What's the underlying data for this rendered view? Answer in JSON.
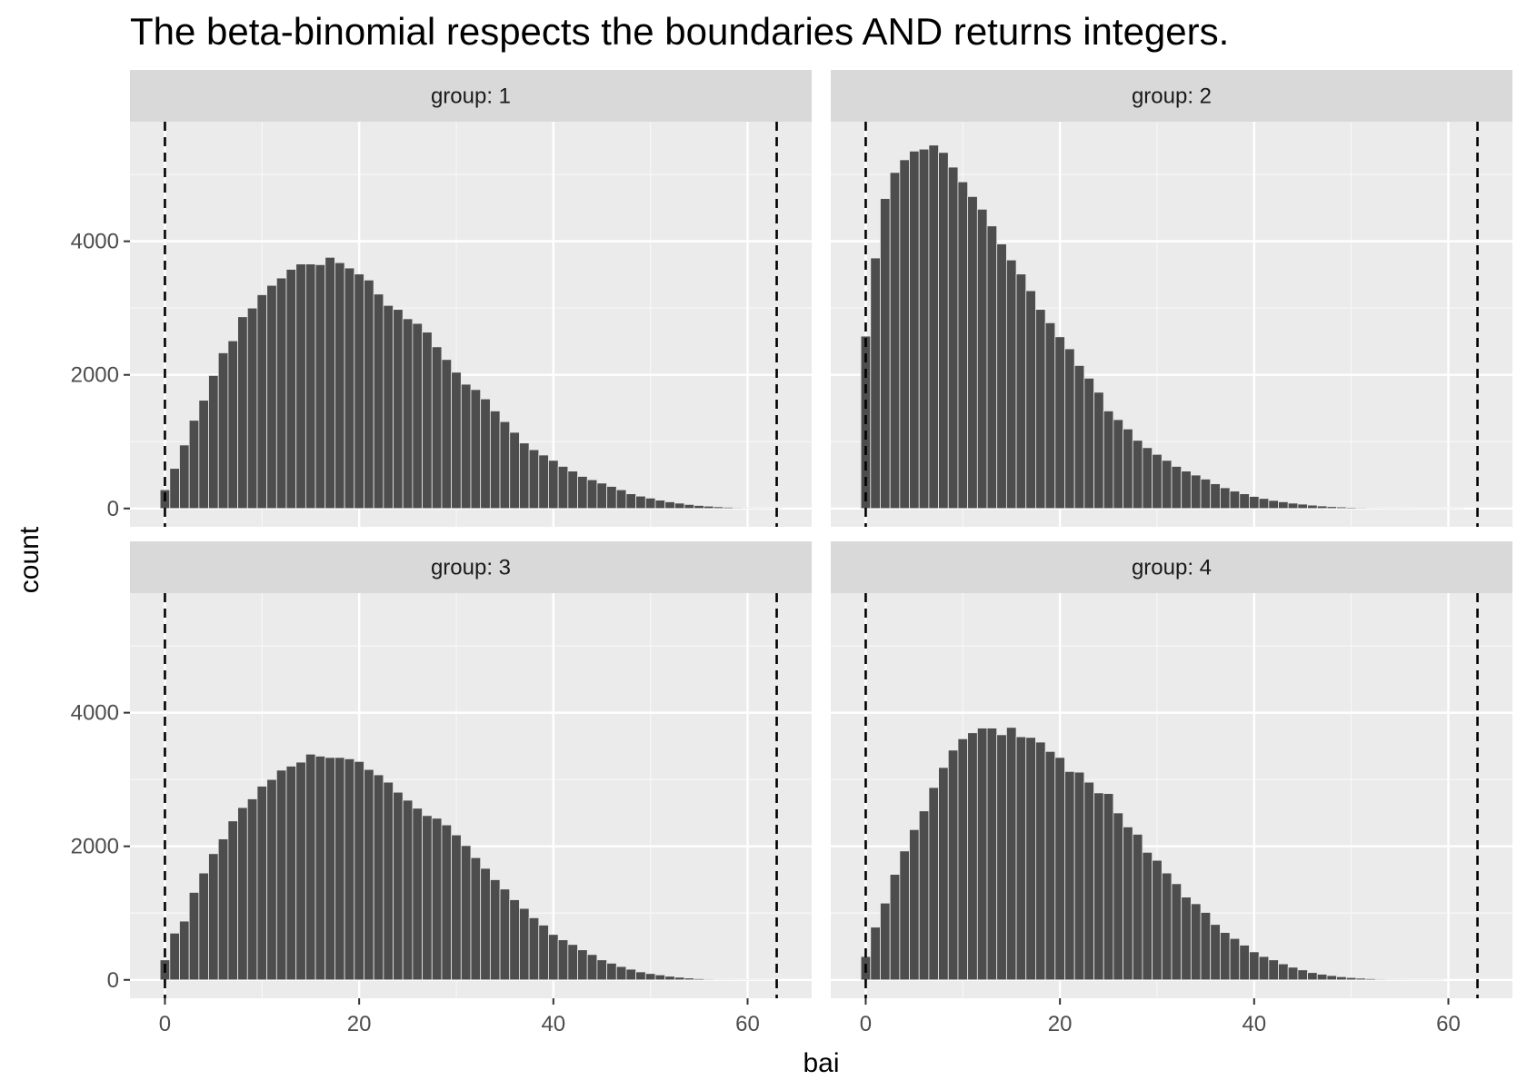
{
  "chart_data": {
    "type": "bar",
    "title": "The beta-binomial respects the boundaries AND returns integers.",
    "xlabel": "bai",
    "ylabel": "count",
    "xlim": [
      -3.6,
      66.6
    ],
    "ylim": [
      -275,
      5790
    ],
    "x_ticks": [
      0,
      20,
      40,
      60
    ],
    "y_ticks": [
      0,
      2000,
      4000
    ],
    "reference_lines": [
      0,
      63
    ],
    "grid": true,
    "x_categories": [
      0,
      1,
      2,
      3,
      4,
      5,
      6,
      7,
      8,
      9,
      10,
      11,
      12,
      13,
      14,
      15,
      16,
      17,
      18,
      19,
      20,
      21,
      22,
      23,
      24,
      25,
      26,
      27,
      28,
      29,
      30,
      31,
      32,
      33,
      34,
      35,
      36,
      37,
      38,
      39,
      40,
      41,
      42,
      43,
      44,
      45,
      46,
      47,
      48,
      49,
      50,
      51,
      52,
      53,
      54,
      55,
      56,
      57,
      58,
      59,
      60,
      61,
      62,
      63
    ],
    "panels": [
      {
        "strip": "group: 1",
        "values": [
          280,
          600,
          950,
          1320,
          1620,
          1990,
          2330,
          2510,
          2870,
          3000,
          3200,
          3340,
          3450,
          3580,
          3660,
          3660,
          3650,
          3760,
          3680,
          3600,
          3510,
          3420,
          3210,
          3040,
          2980,
          2840,
          2770,
          2640,
          2420,
          2230,
          2040,
          1860,
          1780,
          1640,
          1460,
          1300,
          1140,
          980,
          880,
          800,
          720,
          630,
          560,
          480,
          430,
          380,
          330,
          280,
          220,
          185,
          155,
          125,
          100,
          80,
          60,
          45,
          35,
          25,
          18,
          12,
          8,
          5,
          3,
          2
        ]
      },
      {
        "strip": "group: 2",
        "values": [
          2580,
          3750,
          4640,
          5030,
          5220,
          5350,
          5380,
          5440,
          5330,
          5110,
          4890,
          4670,
          4480,
          4230,
          3960,
          3720,
          3510,
          3260,
          2980,
          2780,
          2570,
          2390,
          2140,
          1950,
          1740,
          1460,
          1330,
          1190,
          1020,
          910,
          810,
          720,
          630,
          560,
          500,
          440,
          370,
          310,
          260,
          220,
          180,
          150,
          120,
          100,
          80,
          65,
          50,
          38,
          28,
          22,
          16,
          12,
          9,
          7,
          5,
          4,
          3,
          2,
          2,
          1,
          1,
          1,
          0,
          0
        ]
      },
      {
        "strip": "group: 3",
        "values": [
          300,
          700,
          880,
          1310,
          1600,
          1890,
          2110,
          2380,
          2580,
          2710,
          2900,
          3000,
          3140,
          3200,
          3260,
          3380,
          3350,
          3330,
          3330,
          3310,
          3270,
          3150,
          3070,
          2960,
          2810,
          2690,
          2570,
          2460,
          2420,
          2320,
          2170,
          2010,
          1830,
          1670,
          1500,
          1360,
          1200,
          1070,
          930,
          820,
          680,
          600,
          530,
          450,
          380,
          300,
          250,
          200,
          160,
          120,
          95,
          75,
          55,
          40,
          28,
          18,
          12,
          8,
          5,
          3,
          2,
          1,
          1,
          0
        ]
      },
      {
        "strip": "group: 4",
        "values": [
          350,
          790,
          1150,
          1580,
          1930,
          2250,
          2530,
          2880,
          3180,
          3440,
          3610,
          3700,
          3770,
          3770,
          3670,
          3780,
          3640,
          3630,
          3560,
          3420,
          3330,
          3120,
          3110,
          2960,
          2800,
          2790,
          2500,
          2290,
          2180,
          1910,
          1790,
          1600,
          1440,
          1240,
          1140,
          1010,
          830,
          710,
          620,
          520,
          420,
          350,
          300,
          240,
          190,
          150,
          110,
          85,
          65,
          48,
          35,
          25,
          18,
          12,
          8,
          5,
          3,
          2,
          1,
          1,
          0,
          0,
          0,
          0
        ]
      }
    ]
  }
}
